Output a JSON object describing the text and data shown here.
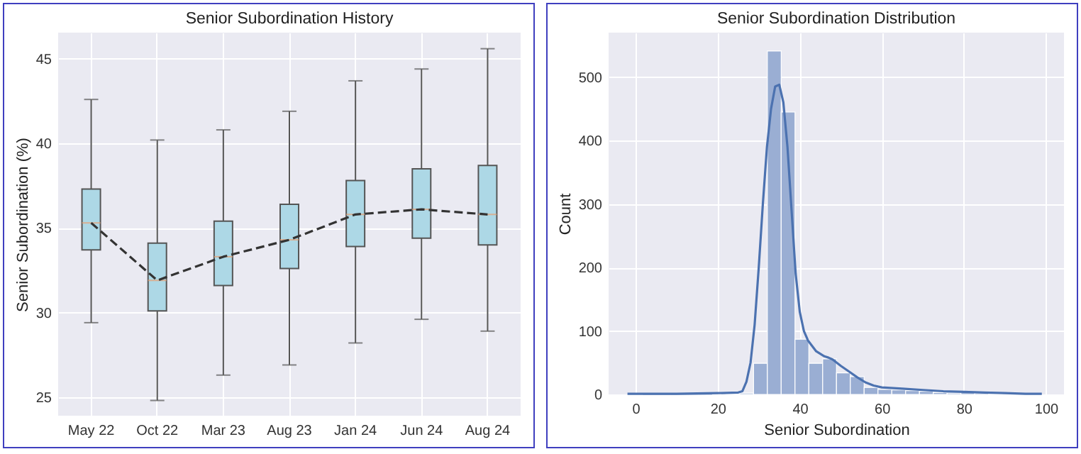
{
  "chart_data": [
    {
      "type": "box",
      "title": "Senior Subordination History",
      "ylabel": "Senior Subordination (%)",
      "categories": [
        "May 22",
        "Oct 22",
        "Mar 23",
        "Aug 23",
        "Jan 24",
        "Jun 24",
        "Aug 24"
      ],
      "ylim": [
        23.9,
        46.55
      ],
      "yticks": [
        25,
        30,
        35,
        40,
        45
      ],
      "grid": true,
      "series": [
        {
          "color": "#add8e6",
          "boxes": [
            {
              "low": 29.4,
              "q1": 33.7,
              "median": 35.3,
              "q3": 37.3,
              "high": 42.6
            },
            {
              "low": 24.8,
              "q1": 30.1,
              "median": 31.9,
              "q3": 34.1,
              "high": 40.2
            },
            {
              "low": 26.3,
              "q1": 31.6,
              "median": 33.3,
              "q3": 35.4,
              "high": 40.8
            },
            {
              "low": 26.9,
              "q1": 32.6,
              "median": 34.3,
              "q3": 36.4,
              "high": 41.9
            },
            {
              "low": 28.2,
              "q1": 33.9,
              "median": 35.8,
              "q3": 37.8,
              "high": 43.7
            },
            {
              "low": 29.6,
              "q1": 34.4,
              "median": 36.1,
              "q3": 38.5,
              "high": 44.4
            },
            {
              "low": 28.9,
              "q1": 34.0,
              "median": 35.8,
              "q3": 38.7,
              "high": 45.6
            }
          ]
        },
        {
          "type": "line",
          "color": "#333333",
          "line_style": "dashed",
          "values": [
            35.3,
            31.9,
            33.3,
            34.3,
            35.8,
            36.1,
            35.8
          ]
        }
      ]
    },
    {
      "type": "histogram",
      "title": "Senior Subordination Distribution",
      "xlabel": "Senior Subordination",
      "ylabel": "Count",
      "xlim": [
        -6.6,
        104.4
      ],
      "xticks": [
        0,
        20,
        40,
        60,
        80,
        100
      ],
      "ylim": [
        0,
        570
      ],
      "yticks": [
        0,
        100,
        200,
        300,
        400,
        500
      ],
      "grid": true,
      "bins": [
        -1.6,
        1.77,
        5.14,
        8.51,
        11.88,
        15.25,
        18.62,
        21.99,
        25.36,
        28.73,
        32.1,
        35.47,
        38.84,
        42.21,
        45.58,
        48.95,
        52.32,
        55.69,
        59.06,
        62.43,
        65.8,
        69.17,
        72.54,
        75.91,
        79.28,
        82.65,
        86.02,
        89.39,
        92.76,
        96.13,
        99.5
      ],
      "series": [
        {
          "color": "#9aaed3",
          "values": [
            1,
            0,
            0,
            0,
            0,
            0,
            null,
            1,
            2,
            49,
            541,
            445,
            87,
            49,
            56,
            34,
            28,
            11,
            8,
            7,
            6,
            5,
            3,
            2,
            3,
            2,
            1,
            null,
            1,
            null
          ]
        },
        {
          "type": "line",
          "color": "#4c72b0",
          "line_style": "solid",
          "x": [
            -2,
            10,
            20,
            25,
            26,
            27,
            28,
            29,
            30,
            31,
            32,
            33,
            34,
            35,
            36,
            37,
            38,
            39,
            40,
            41,
            42,
            44,
            46,
            47,
            48,
            50,
            52,
            54,
            56,
            58,
            60,
            65,
            70,
            75,
            80,
            85,
            90,
            95,
            99
          ],
          "values": [
            1,
            1,
            2,
            3,
            5,
            20,
            50,
            110,
            200,
            300,
            390,
            450,
            485,
            488,
            460,
            390,
            290,
            190,
            130,
            100,
            85,
            68,
            60,
            58,
            55,
            45,
            36,
            27,
            19,
            14,
            11,
            9,
            7,
            5,
            4,
            3,
            2,
            1,
            1
          ]
        }
      ]
    }
  ]
}
